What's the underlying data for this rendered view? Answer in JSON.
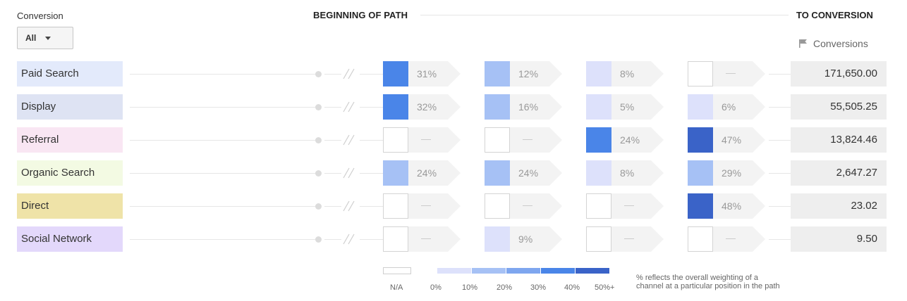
{
  "filter": {
    "label": "Conversion",
    "value": "All"
  },
  "headers": {
    "begin": "BEGINNING OF PATH",
    "end": "TO CONVERSION",
    "metric": "Conversions"
  },
  "colors": {
    "arrow_bg": "#f3f3f3",
    "value_bg": "#eeeeee",
    "empty": "#ffffff",
    "light": "#dde1fb",
    "mid": "#a6c1f5",
    "strong": "#4a85e8",
    "darkest": "#3a63c8"
  },
  "rows": [
    {
      "channel": "Paid Search",
      "color": "#e3eafb",
      "cells": [
        "31%",
        "12%",
        "8%",
        "—"
      ],
      "shade": [
        3,
        2,
        1,
        0
      ],
      "value": "171,650.00"
    },
    {
      "channel": "Display",
      "color": "#dee3f3",
      "cells": [
        "32%",
        "16%",
        "5%",
        "6%"
      ],
      "shade": [
        3,
        2,
        1,
        1
      ],
      "value": "55,505.25"
    },
    {
      "channel": "Referral",
      "color": "#f9e6f3",
      "cells": [
        "—",
        "—",
        "24%",
        "47%"
      ],
      "shade": [
        0,
        0,
        3,
        4
      ],
      "value": "13,824.46"
    },
    {
      "channel": "Organic Search",
      "color": "#f3fae3",
      "cells": [
        "24%",
        "24%",
        "8%",
        "29%"
      ],
      "shade": [
        2,
        2,
        1,
        2
      ],
      "value": "2,647.27"
    },
    {
      "channel": "Direct",
      "color": "#efe3a8",
      "cells": [
        "—",
        "—",
        "—",
        "48%"
      ],
      "shade": [
        0,
        0,
        0,
        4
      ],
      "value": "23.02"
    },
    {
      "channel": "Social Network",
      "color": "#e3d8fb",
      "cells": [
        "—",
        "9%",
        "—",
        "—"
      ],
      "shade": [
        0,
        1,
        0,
        0
      ],
      "value": "9.50"
    }
  ],
  "legend": {
    "na": "N/A",
    "ticks": [
      "0%",
      "10%",
      "20%",
      "30%",
      "40%",
      "50%+"
    ],
    "segments": [
      "#dde1fb",
      "#a6c1f5",
      "#7ea6ef",
      "#4a85e8",
      "#3a63c8"
    ],
    "note_line1": "% reflects the overall weighting of a",
    "note_line2": "channel at a particular position in the path"
  }
}
